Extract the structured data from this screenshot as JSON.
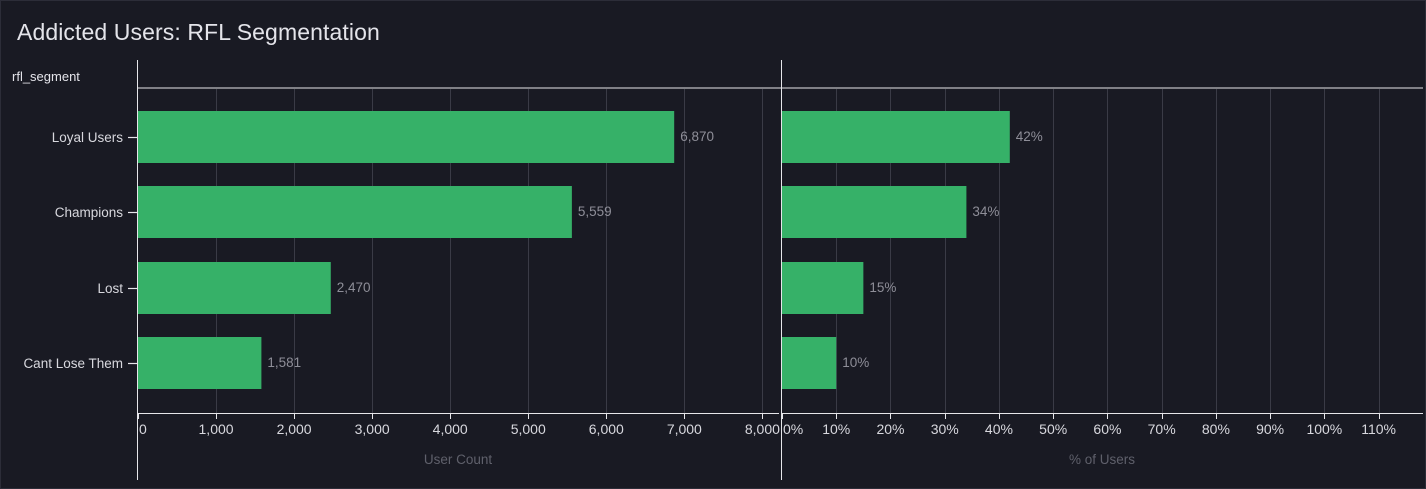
{
  "title": "Addicted Users: RFL Segmentation",
  "dimension_label": "rfl_segment",
  "colors": {
    "bar": "#36b168",
    "background": "#191a23",
    "grid": "#3a3b46",
    "axis": "#e6e6ea"
  },
  "chart_data": [
    {
      "type": "bar",
      "orientation": "horizontal",
      "categories": [
        "Loyal Users",
        "Champions",
        "Lost",
        "Cant Lose Them"
      ],
      "values": [
        6870,
        5559,
        2470,
        1581
      ],
      "value_labels": [
        "6,870",
        "5,559",
        "2,470",
        "1,581"
      ],
      "xlabel": "User Count",
      "xlim": [
        0,
        8200
      ],
      "tick_values": [
        0,
        1000,
        2000,
        3000,
        4000,
        5000,
        6000,
        7000,
        8000
      ],
      "tick_labels": [
        "0",
        "1,000",
        "2,000",
        "3,000",
        "4,000",
        "5,000",
        "6,000",
        "7,000",
        "8,000"
      ],
      "grid": true
    },
    {
      "type": "bar",
      "orientation": "horizontal",
      "categories": [
        "Loyal Users",
        "Champions",
        "Lost",
        "Cant Lose Them"
      ],
      "values": [
        42,
        34,
        15,
        10
      ],
      "value_labels": [
        "42%",
        "34%",
        "15%",
        "10%"
      ],
      "xlabel": "% of Users",
      "xlim": [
        0,
        118
      ],
      "tick_values": [
        0,
        10,
        20,
        30,
        40,
        50,
        60,
        70,
        80,
        90,
        100,
        110
      ],
      "tick_labels": [
        "0%",
        "10%",
        "20%",
        "30%",
        "40%",
        "50%",
        "60%",
        "70%",
        "80%",
        "90%",
        "100%",
        "110%"
      ],
      "grid": true
    }
  ]
}
